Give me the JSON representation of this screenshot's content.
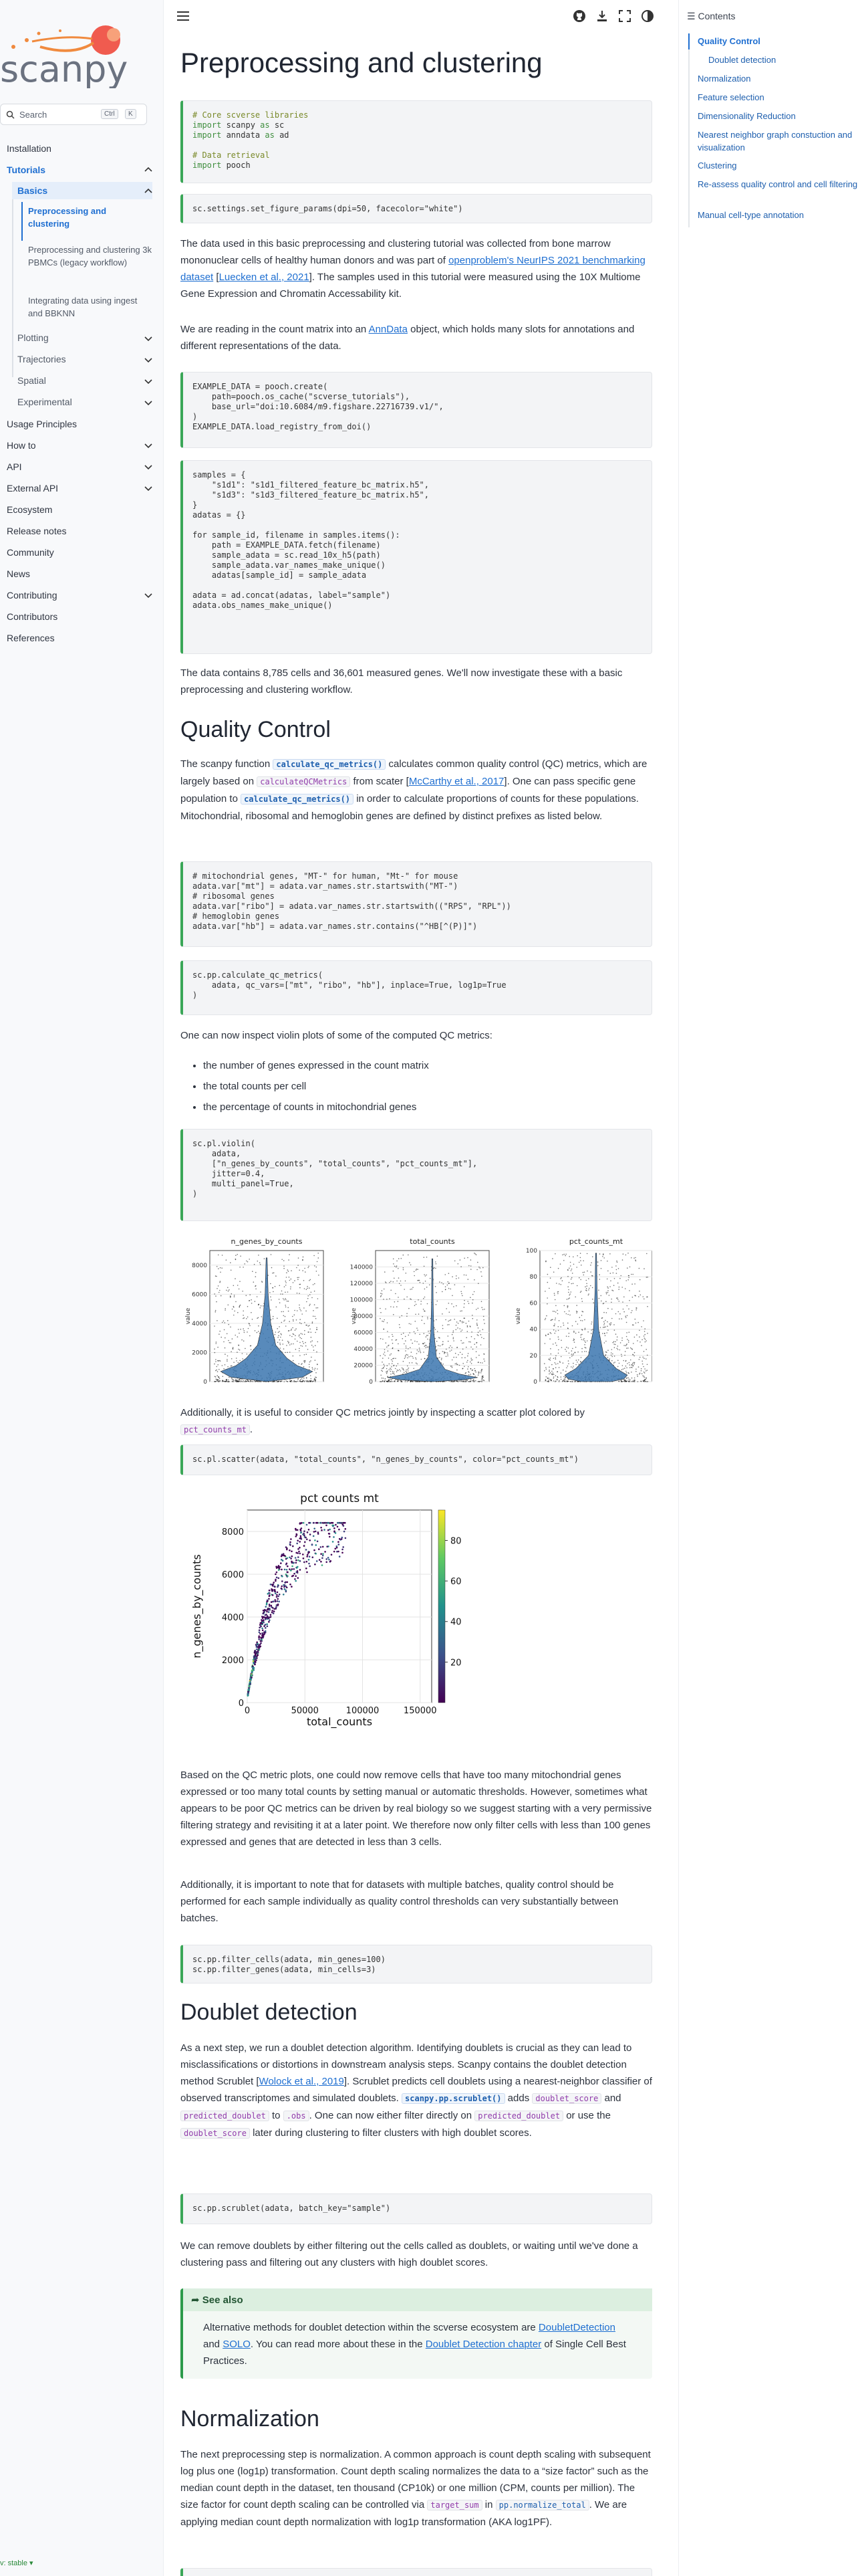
{
  "sidebar": {
    "search_placeholder": "Search",
    "search_kbd": [
      "Ctrl",
      "K"
    ],
    "items": [
      {
        "label": "Installation"
      },
      {
        "label": "Tutorials"
      },
      {
        "label": "Basics"
      },
      {
        "label": "Preprocessing and clustering"
      },
      {
        "label": "Preprocessing and clustering 3k PBMCs (legacy workflow)"
      },
      {
        "label": "Integrating data using ingest and BBKNN"
      },
      {
        "label": "Plotting"
      },
      {
        "label": "Trajectories"
      },
      {
        "label": "Spatial"
      },
      {
        "label": "Experimental"
      },
      {
        "label": "Usage Principles"
      },
      {
        "label": "How to"
      },
      {
        "label": "API"
      },
      {
        "label": "External API"
      },
      {
        "label": "Ecosystem"
      },
      {
        "label": "Release notes"
      },
      {
        "label": "Community"
      },
      {
        "label": "News"
      },
      {
        "label": "Contributing"
      },
      {
        "label": "Contributors"
      },
      {
        "label": "References"
      }
    ],
    "version": "v: stable"
  },
  "toc": {
    "title": "Contents",
    "items": [
      "Quality Control",
      "Doublet detection",
      "Normalization",
      "Feature selection",
      "Dimensionality Reduction",
      "Nearest neighbor graph constuction and visualization",
      "Clustering",
      "Re-assess quality control and cell filtering",
      "Manual cell-type annotation"
    ]
  },
  "page": {
    "title": "Preprocessing and clustering",
    "intro1_a": "The data used in this basic preprocessing and clustering tutorial was collected from bone marrow mononuclear cells of healthy human donors and was part of ",
    "intro1_link": "openproblem's NeurIPS 2021 benchmarking dataset",
    "intro1_b": " [",
    "intro1_cite": "Luecken et al., 2021",
    "intro1_c": "]. The samples used in this tutorial were measured using the 10X Multiome Gene Expression and Chromatin Accessability kit.",
    "intro2_a": "We are reading in the count matrix into an ",
    "intro2_link": "AnnData",
    "intro2_b": " object, which holds many slots for annotations and different representations of the data.",
    "intro3": "The data contains 8,785 cells and 36,601 measured genes. We'll now investigate these with a basic preprocessing and clustering workflow.",
    "qc_title": "Quality Control",
    "qc1_a": "The scanpy function ",
    "qc1_fn": "calculate_qc_metrics()",
    "qc1_b": " calculates common quality control (QC) metrics, which are largely based on ",
    "qc1_code": "calculateQCMetrics",
    "qc1_c": " from scater [",
    "qc1_cite": "McCarthy et al., 2017",
    "qc1_d": "]. One can pass specific gene population to ",
    "qc1_fn2": "calculate_qc_metrics()",
    "qc1_e": " in order to calculate proportions of counts for these populations. Mitochondrial, ribosomal and hemoglobin genes are defined by distinct prefixes as listed below.",
    "qc2": "One can now inspect violin plots of some of the computed QC metrics:",
    "qc_bullets": [
      "the number of genes expressed in the count matrix",
      "the total counts per cell",
      "the percentage of counts in mitochondrial genes"
    ],
    "qc3_a": "Additionally, it is useful to consider QC metrics jointly by inspecting a scatter plot colored by ",
    "qc3_code": "pct_counts_mt",
    "qc3_b": ".",
    "qc4": "Based on the QC metric plots, one could now remove cells that have too many mitochondrial genes expressed or too many total counts by setting manual or automatic thresholds. However, sometimes what appears to be poor QC metrics can be driven by real biology so we suggest starting with a very permissive filtering strategy and revisiting it at a later point. We therefore now only filter cells with less than 100 genes expressed and genes that are detected in less than 3 cells.",
    "qc5": "Additionally, it is important to note that for datasets with multiple batches, quality control should be performed for each sample individually as quality control thresholds can very substantially between batches.",
    "db_title": "Doublet detection",
    "db1_a": "As a next step, we run a doublet detection algorithm. Identifying doublets is crucial as they can lead to misclassifications or distortions in downstream analysis steps. Scanpy contains the doublet detection method Scrublet [",
    "db1_cite": "Wolock et al., 2019",
    "db1_b": "]. Scrublet predicts cell doublets using a nearest-neighbor classifier of observed transcriptomes and simulated doublets. ",
    "db1_fn": "scanpy.pp.scrublet()",
    "db1_c": " adds ",
    "db1_code1": "doublet_score",
    "db1_d": " and ",
    "db1_code2": "predicted_doublet",
    "db1_e": " to ",
    "db1_code3": ".obs",
    "db1_f": ". One can now either filter directly on ",
    "db1_code4": "predicted_doublet",
    "db1_g": " or use the ",
    "db1_code5": "doublet_score",
    "db1_h": " later during clustering to filter clusters with high doublet scores.",
    "db2": "We can remove doublets by either filtering out the cells called as doublets, or waiting until we've done a clustering pass and filtering out any clusters with high doublet scores.",
    "seealso_title": "See also",
    "seealso_a": "Alternative methods for doublet detection within the scverse ecosystem are ",
    "seealso_l1": "DoubletDetection",
    "seealso_b": " and ",
    "seealso_l2": "SOLO",
    "seealso_c": ". You can read more about these in the ",
    "seealso_l3": "Doublet Detection chapter",
    "seealso_d": " of Single Cell Best Practices.",
    "norm_title": "Normalization",
    "norm1_a": "The next preprocessing step is normalization. A common approach is count depth scaling with subsequent log plus one (log1p) transformation. Count depth scaling normalizes the data to a “size factor” such as the median count depth in the dataset, ten thousand (CP10k) or one million (CPM, counts per million). The size factor for count depth scaling can be controlled via ",
    "norm1_code": "target_sum",
    "norm1_b": " in ",
    "norm1_fn": "pp.normalize_total",
    "norm1_c": ". We are applying median count depth normalization with log1p transformation (AKA log1PF)."
  },
  "code": {
    "c1": [
      [
        "cm",
        "# Core scverse libraries"
      ],
      [
        "kw",
        "import",
        " scanpy ",
        "kw",
        "as",
        " sc"
      ],
      [
        "kw",
        "import",
        " anndata ",
        "kw",
        "as",
        " ad"
      ],
      [
        ""
      ],
      [
        "cm",
        "# Data retrieval"
      ],
      [
        "kw",
        "import",
        " pooch"
      ]
    ],
    "c2": "sc.settings.set_figure_params(dpi=50, facecolor=\"white\")",
    "c3": "EXAMPLE_DATA = pooch.create(\n    path=pooch.os_cache(\"scverse_tutorials\"),\n    base_url=\"doi:10.6084/m9.figshare.22716739.v1/\",\n)\nEXAMPLE_DATA.load_registry_from_doi()",
    "c4": "samples = {\n    \"s1d1\": \"s1d1_filtered_feature_bc_matrix.h5\",\n    \"s1d3\": \"s1d3_filtered_feature_bc_matrix.h5\",\n}\nadatas = {}\n\nfor sample_id, filename in samples.items():\n    path = EXAMPLE_DATA.fetch(filename)\n    sample_adata = sc.read_10x_h5(path)\n    sample_adata.var_names_make_unique()\n    adatas[sample_id] = sample_adata\n\nadata = ad.concat(adatas, label=\"sample\")\nadata.obs_names_make_unique()",
    "c5": "# mitochondrial genes, \"MT-\" for human, \"Mt-\" for mouse\nadata.var[\"mt\"] = adata.var_names.str.startswith(\"MT-\")\n# ribosomal genes\nadata.var[\"ribo\"] = adata.var_names.str.startswith((\"RPS\", \"RPL\"))\n# hemoglobin genes\nadata.var[\"hb\"] = adata.var_names.str.contains(\"^HB[^(P)]\")",
    "c6": "sc.pp.calculate_qc_metrics(\n    adata, qc_vars=[\"mt\", \"ribo\", \"hb\"], inplace=True, log1p=True\n)",
    "c7": "sc.pl.violin(\n    adata,\n    [\"n_genes_by_counts\", \"total_counts\", \"pct_counts_mt\"],\n    jitter=0.4,\n    multi_panel=True,\n)",
    "c8": "sc.pl.scatter(adata, \"total_counts\", \"n_genes_by_counts\", color=\"pct_counts_mt\")",
    "c9": "sc.pp.filter_cells(adata, min_genes=100)\nsc.pp.filter_genes(adata, min_cells=3)",
    "c10": "sc.pp.scrublet(adata, batch_key=\"sample\")"
  },
  "chart_data": [
    {
      "type": "violin",
      "panels": [
        {
          "title": "n_genes_by_counts",
          "ylabel": "value",
          "ylim": [
            0,
            9000
          ],
          "yticks": [
            0,
            2000,
            4000,
            6000,
            8000
          ]
        },
        {
          "title": "total_counts",
          "ylabel": "value",
          "ylim": [
            0,
            160000
          ],
          "yticks": [
            0,
            20000,
            40000,
            60000,
            80000,
            100000,
            120000,
            140000
          ]
        },
        {
          "title": "pct_counts_mt",
          "ylabel": "value",
          "ylim": [
            0,
            100
          ],
          "yticks": [
            0,
            20,
            40,
            60,
            80,
            100
          ]
        }
      ]
    },
    {
      "type": "scatter",
      "title": "pct counts mt",
      "xlabel": "total_counts",
      "ylabel": "n_genes_by_counts",
      "xlim": [
        0,
        160000
      ],
      "ylim": [
        0,
        9000
      ],
      "xticks": [
        0,
        50000,
        100000,
        150000
      ],
      "yticks": [
        0,
        2000,
        4000,
        6000,
        8000
      ],
      "colorbar_ticks": [
        20,
        40,
        60,
        80
      ],
      "colorbar_range": [
        0,
        95
      ],
      "grid": true
    }
  ],
  "colors": {
    "accent": "#1f6fd1",
    "code_border": "#3aa657",
    "violin_fill": "#3b75af"
  }
}
